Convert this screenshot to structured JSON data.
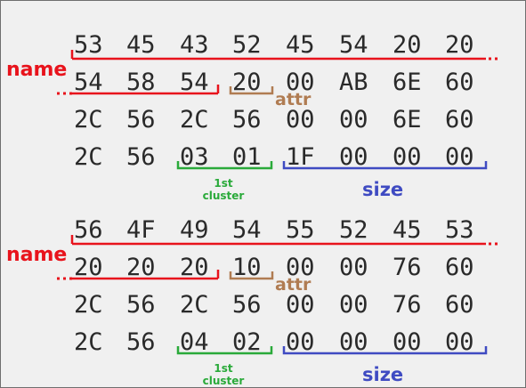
{
  "entries": [
    {
      "rows": [
        [
          "53",
          "45",
          "43",
          "52",
          "45",
          "54",
          "20",
          "20"
        ],
        [
          "54",
          "58",
          "54",
          "20",
          "00",
          "AB",
          "6E",
          "60"
        ],
        [
          "2C",
          "56",
          "2C",
          "56",
          "00",
          "00",
          "6E",
          "60"
        ],
        [
          "2C",
          "56",
          "03",
          "01",
          "1F",
          "00",
          "00",
          "00"
        ]
      ],
      "labels": {
        "name": "name",
        "attr": "attr",
        "cluster_line1": "1st",
        "cluster_line2": "cluster",
        "size": "size"
      }
    },
    {
      "rows": [
        [
          "56",
          "4F",
          "49",
          "54",
          "55",
          "52",
          "45",
          "53"
        ],
        [
          "20",
          "20",
          "20",
          "10",
          "00",
          "00",
          "76",
          "60"
        ],
        [
          "2C",
          "56",
          "2C",
          "56",
          "00",
          "00",
          "76",
          "60"
        ],
        [
          "2C",
          "56",
          "04",
          "02",
          "00",
          "00",
          "00",
          "00"
        ]
      ],
      "labels": {
        "name": "name",
        "attr": "attr",
        "cluster_line1": "1st",
        "cluster_line2": "cluster",
        "size": "size"
      }
    }
  ],
  "colors": {
    "name": "#e8131c",
    "attr": "#b07c52",
    "cluster": "#2aaa3a",
    "size": "#3f4bc2",
    "text": "#2a2a2a",
    "background": "#f0f0f0"
  }
}
